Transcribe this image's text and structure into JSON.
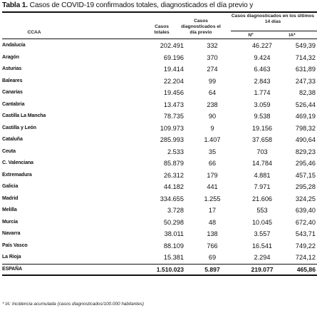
{
  "title_bold": "Tabla 1.",
  "title_rest": " Casos de COVID-19 confirmados totales, diagnosticados el día previo y",
  "headers": {
    "ccaa": "CCAA",
    "casos_totales": "Casos totales",
    "diagnosticados_dia_previo": "Casos diagnosticados el día previo",
    "ultimos_14_group": "Casos diagnosticados en los últimos 14 días",
    "n": "Nº",
    "ia": "IA*"
  },
  "rows": [
    {
      "ccaa": "Andalucía",
      "totales": "202.491",
      "previo": "332",
      "n14": "46.227",
      "ia": "549,39"
    },
    {
      "ccaa": "Aragón",
      "totales": "69.196",
      "previo": "370",
      "n14": "9.424",
      "ia": "714,32"
    },
    {
      "ccaa": "Asturias",
      "totales": "19.414",
      "previo": "274",
      "n14": "6.463",
      "ia": "631,89"
    },
    {
      "ccaa": "Baleares",
      "totales": "22.204",
      "previo": "99",
      "n14": "2.843",
      "ia": "247,33"
    },
    {
      "ccaa": "Canarias",
      "totales": "19.456",
      "previo": "64",
      "n14": "1.774",
      "ia": "82,38"
    },
    {
      "ccaa": "Cantabria",
      "totales": "13.473",
      "previo": "238",
      "n14": "3.059",
      "ia": "526,44"
    },
    {
      "ccaa": "Castilla La Mancha",
      "totales": "78.735",
      "previo": "90",
      "n14": "9.538",
      "ia": "469,19"
    },
    {
      "ccaa": "Castilla y León",
      "totales": "109.973",
      "previo": "9",
      "n14": "19.156",
      "ia": "798,32"
    },
    {
      "ccaa": "Cataluña",
      "totales": "285.993",
      "previo": "1.407",
      "n14": "37.658",
      "ia": "490,64"
    },
    {
      "ccaa": "Ceuta",
      "totales": "2.533",
      "previo": "35",
      "n14": "703",
      "ia": "829,23"
    },
    {
      "ccaa": "C. Valenciana",
      "totales": "85.879",
      "previo": "66",
      "n14": "14.784",
      "ia": "295,46"
    },
    {
      "ccaa": "Extremadura",
      "totales": "26.312",
      "previo": "179",
      "n14": "4.881",
      "ia": "457,15"
    },
    {
      "ccaa": "Galicia",
      "totales": "44.182",
      "previo": "441",
      "n14": "7.971",
      "ia": "295,28"
    },
    {
      "ccaa": "Madrid",
      "totales": "334.655",
      "previo": "1.255",
      "n14": "21.606",
      "ia": "324,25"
    },
    {
      "ccaa": "Melilla",
      "totales": "3.728",
      "previo": "17",
      "n14": "553",
      "ia": "639,40"
    },
    {
      "ccaa": "Murcia",
      "totales": "50.298",
      "previo": "48",
      "n14": "10.045",
      "ia": "672,40"
    },
    {
      "ccaa": "Navarra",
      "totales": "38.011",
      "previo": "138",
      "n14": "3.557",
      "ia": "543,71"
    },
    {
      "ccaa": "País Vasco",
      "totales": "88.109",
      "previo": "766",
      "n14": "16.541",
      "ia": "749,22"
    },
    {
      "ccaa": "La Rioja",
      "totales": "15.381",
      "previo": "69",
      "n14": "2.294",
      "ia": "724,12"
    }
  ],
  "total": {
    "ccaa": "ESPAÑA",
    "totales": "1.510.023",
    "previo": "5.897",
    "n14": "219.077",
    "ia": "465,86"
  },
  "footnote": "* IA: Incidencia acumulada (casos diagnosticados/100.000 habitantes)"
}
